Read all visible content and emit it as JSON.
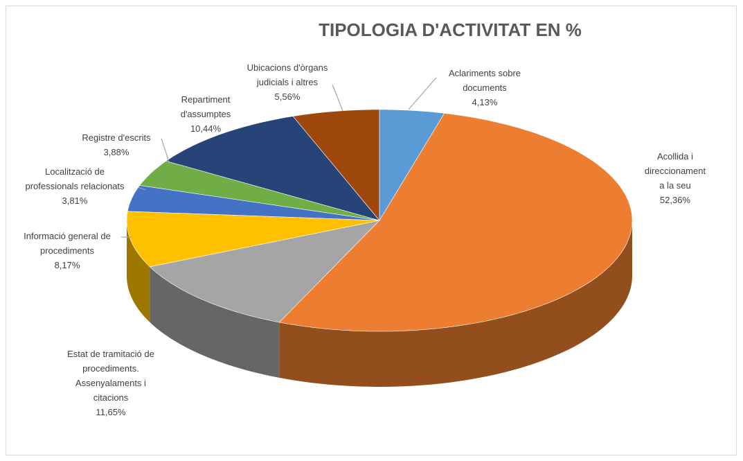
{
  "chart_data": {
    "type": "pie3d",
    "title": "TIPOLOGIA D'ACTIVITAT EN %",
    "categories": [
      "Aclariments sobre\ndocuments",
      "Acollida i direccionament\na la seu",
      "Estat de tramitació de\nprocediments.\nAssenyalaments i\ncitacions",
      "Informació general de\nprocediments",
      "Localització de\nprofessionals relacionats",
      "Registre d'escrits",
      "Repartiment\nd'assumptes",
      "Ubicacions d'òrgans\njudicials i altres"
    ],
    "values": [
      4.13,
      52.36,
      11.65,
      8.17,
      3.81,
      3.88,
      10.44,
      5.56
    ],
    "value_labels": [
      "4,13%",
      "52,36%",
      "11,65%",
      "8,17%",
      "3,81%",
      "3,88%",
      "10,44%",
      "5,56%"
    ],
    "colors": [
      "#5b9bd5",
      "#ed7d31",
      "#a5a5a5",
      "#ffc000",
      "#4472c4",
      "#70ad47",
      "#264478",
      "#9e480e"
    ]
  }
}
